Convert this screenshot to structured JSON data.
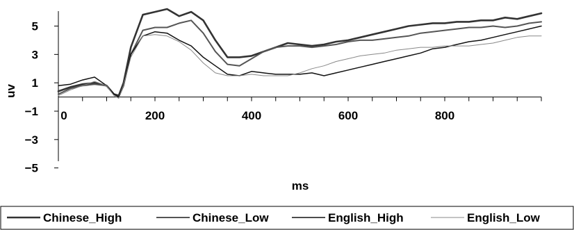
{
  "chart_data": {
    "type": "line",
    "xlabel": "ms",
    "ylabel": "uv",
    "xlim": [
      0,
      1000
    ],
    "ylim": [
      -5,
      6.5
    ],
    "x_ticks": [
      0,
      200,
      400,
      600,
      800
    ],
    "y_ticks": [
      -5,
      -3,
      -1,
      1,
      3,
      5
    ],
    "x_tick_labels": [
      "0",
      "200",
      "400",
      "600",
      "800"
    ],
    "y_tick_labels": [
      "−5",
      "−3",
      "−1",
      "1",
      "3",
      "5"
    ],
    "grid": false,
    "legend_position": "bottom",
    "x": [
      0,
      25,
      50,
      75,
      100,
      115,
      125,
      135,
      150,
      175,
      200,
      225,
      250,
      275,
      300,
      325,
      350,
      375,
      400,
      425,
      450,
      475,
      500,
      525,
      550,
      575,
      600,
      625,
      650,
      675,
      700,
      725,
      750,
      775,
      800,
      825,
      850,
      875,
      900,
      925,
      950,
      975,
      1000
    ],
    "series": [
      {
        "name": "Chinese_High",
        "color": "#333333",
        "width": 2.6,
        "values": [
          0.4,
          0.7,
          0.9,
          1.0,
          0.8,
          0.2,
          0.1,
          1.0,
          3.5,
          5.8,
          6.0,
          6.2,
          5.7,
          6.0,
          5.4,
          4.0,
          2.8,
          2.8,
          2.9,
          3.2,
          3.5,
          3.8,
          3.7,
          3.6,
          3.7,
          3.9,
          4.0,
          4.2,
          4.4,
          4.6,
          4.8,
          5.0,
          5.1,
          5.2,
          5.2,
          5.3,
          5.3,
          5.4,
          5.4,
          5.6,
          5.5,
          5.7,
          5.9
        ]
      },
      {
        "name": "Chinese_Low",
        "color": "#555555",
        "width": 2.0,
        "values": [
          0.2,
          0.6,
          0.8,
          0.9,
          0.8,
          0.2,
          0.0,
          0.8,
          3.0,
          4.7,
          4.9,
          4.9,
          5.2,
          5.4,
          4.5,
          3.2,
          2.3,
          2.2,
          2.7,
          3.2,
          3.5,
          3.6,
          3.6,
          3.5,
          3.6,
          3.7,
          3.9,
          4.0,
          4.0,
          4.1,
          4.2,
          4.3,
          4.5,
          4.6,
          4.7,
          4.8,
          4.9,
          4.9,
          5.0,
          4.9,
          5.0,
          5.2,
          5.3
        ]
      },
      {
        "name": "English_High",
        "color": "#111111",
        "width": 1.5,
        "values": [
          0.8,
          0.9,
          1.2,
          1.4,
          0.8,
          0.2,
          0.0,
          0.8,
          3.0,
          4.3,
          4.6,
          4.5,
          4.0,
          3.6,
          2.8,
          2.2,
          1.6,
          1.5,
          1.8,
          1.7,
          1.6,
          1.6,
          1.6,
          1.7,
          1.5,
          1.7,
          1.9,
          2.1,
          2.3,
          2.5,
          2.7,
          2.9,
          3.1,
          3.4,
          3.5,
          3.7,
          3.9,
          4.0,
          4.2,
          4.4,
          4.6,
          4.8,
          5.0
        ]
      },
      {
        "name": "English_Low",
        "color": "#888888",
        "width": 1.0,
        "values": [
          0.1,
          0.5,
          0.8,
          1.1,
          0.8,
          0.1,
          -0.1,
          0.8,
          2.8,
          4.3,
          4.4,
          4.3,
          3.9,
          3.3,
          2.4,
          1.7,
          1.5,
          1.5,
          1.6,
          1.5,
          1.5,
          1.5,
          1.7,
          2.0,
          2.2,
          2.5,
          2.7,
          2.9,
          3.0,
          3.1,
          3.3,
          3.4,
          3.5,
          3.5,
          3.6,
          3.6,
          3.6,
          3.7,
          3.8,
          4.0,
          4.2,
          4.3,
          4.3
        ]
      }
    ]
  }
}
